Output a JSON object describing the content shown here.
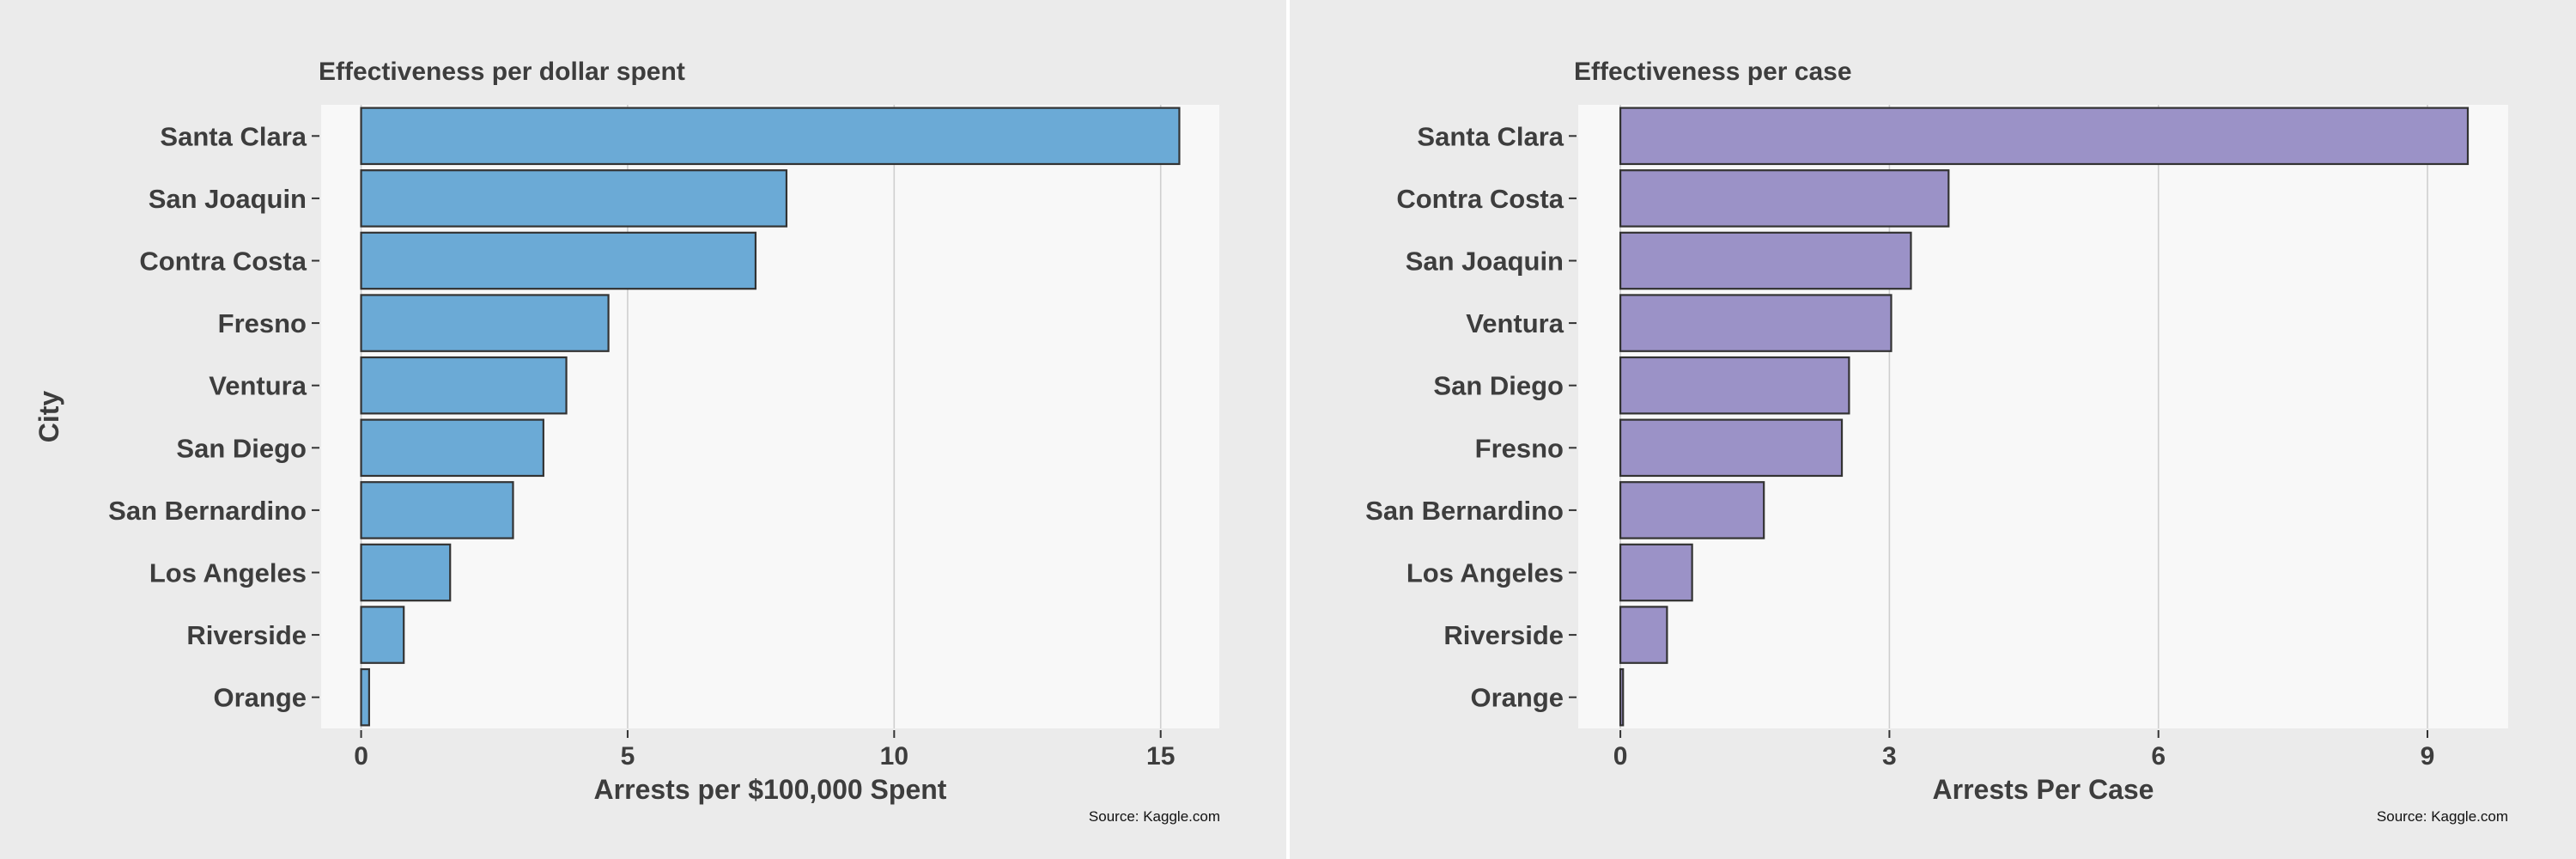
{
  "chart_data": [
    {
      "type": "bar",
      "orientation": "horizontal",
      "title": "Effectiveness per dollar spent",
      "xlabel": "Arrests per $100,000 Spent",
      "ylabel": "City",
      "caption": "Source: Kaggle.com",
      "categories": [
        "Santa Clara",
        "San Joaquin",
        "Contra Costa",
        "Fresno",
        "Ventura",
        "San Diego",
        "San Bernardino",
        "Los Angeles",
        "Riverside",
        "Orange"
      ],
      "values": [
        15.35,
        7.98,
        7.4,
        4.64,
        3.85,
        3.42,
        2.85,
        1.67,
        0.8,
        0.15
      ],
      "xlim": [
        -0.75,
        16.1
      ],
      "xticks": [
        0,
        5,
        10,
        15
      ],
      "xtick_labels": [
        "0",
        "5",
        "10",
        "15"
      ],
      "bar_color": "#6baad6",
      "grid": true
    },
    {
      "type": "bar",
      "orientation": "horizontal",
      "title": "Effectiveness per case",
      "xlabel": "Arrests Per Case",
      "ylabel": "",
      "caption": "Source: Kaggle.com",
      "categories": [
        "Santa Clara",
        "Contra Costa",
        "San Joaquin",
        "Ventura",
        "San Diego",
        "Fresno",
        "San Bernardino",
        "Los Angeles",
        "Riverside",
        "Orange"
      ],
      "values": [
        9.45,
        3.66,
        3.24,
        3.02,
        2.55,
        2.47,
        1.6,
        0.8,
        0.52,
        0.03
      ],
      "xlim": [
        -0.47,
        9.9
      ],
      "xticks": [
        0,
        3,
        6,
        9
      ],
      "xtick_labels": [
        "0",
        "3",
        "6",
        "9"
      ],
      "bar_color": "#9b92c7",
      "grid": true
    }
  ]
}
